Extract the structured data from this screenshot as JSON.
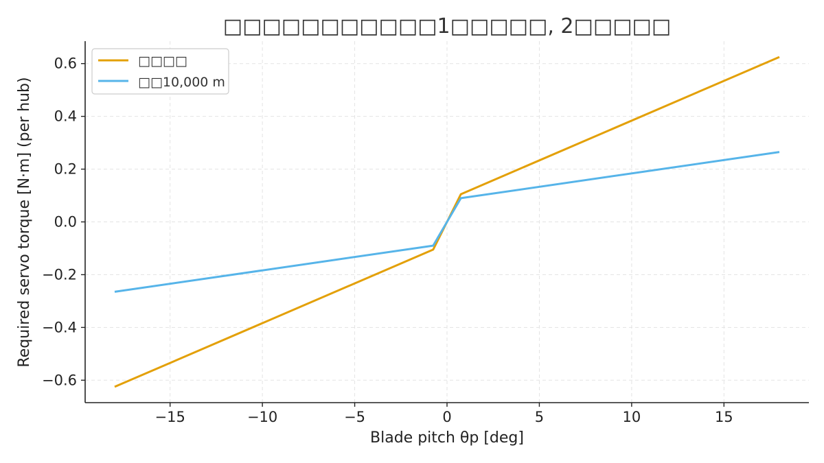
{
  "chart_data": {
    "type": "line",
    "title": "□□□□□□□□□□□1□□□□□, 2□□□□□",
    "xlabel": "Blade pitch θp [deg]",
    "ylabel": "Required servo torque [N·m] (per hub)",
    "xlim": [
      -19.6,
      19.6
    ],
    "ylim": [
      -0.685,
      0.685
    ],
    "xticks": [
      -15,
      -10,
      -5,
      0,
      5,
      10,
      15
    ],
    "yticks": [
      -0.6,
      -0.4,
      -0.2,
      0.0,
      0.2,
      0.4,
      0.6
    ],
    "xtick_labels": [
      "−15",
      "−10",
      "−5",
      "0",
      "5",
      "10",
      "15"
    ],
    "ytick_labels": [
      "−0.6",
      "−0.4",
      "−0.2",
      "0.0",
      "0.2",
      "0.4",
      "0.6"
    ],
    "grid": true,
    "legend_position": "top-left",
    "series": [
      {
        "name": "□□□□",
        "color": "#E3A008",
        "x": [
          -18,
          -0.75,
          0.75,
          18
        ],
        "y": [
          -0.625,
          -0.105,
          0.105,
          0.625
        ]
      },
      {
        "name": "□□10,000 m",
        "color": "#56B4E9",
        "x": [
          -18,
          -0.75,
          0.75,
          18
        ],
        "y": [
          -0.265,
          -0.09,
          0.09,
          0.265
        ]
      }
    ]
  }
}
